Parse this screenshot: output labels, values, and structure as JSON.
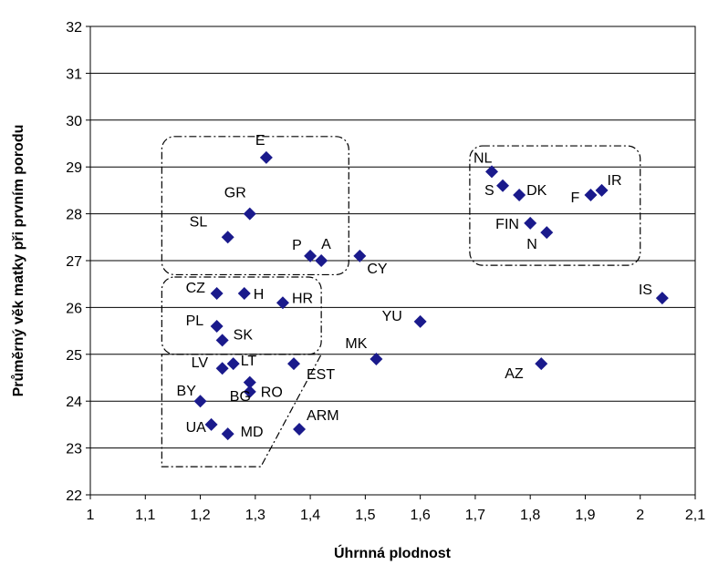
{
  "chart_data": {
    "type": "scatter",
    "title": "",
    "xlabel": "Úhrnná plodnost",
    "ylabel": "Průměrný věk matky při prvním porodu",
    "xlim": [
      1,
      2.1
    ],
    "ylim": [
      22,
      32
    ],
    "x_ticks": [
      "1",
      "1,1",
      "1,2",
      "1,3",
      "1,4",
      "1,5",
      "1,6",
      "1,7",
      "1,8",
      "1,9",
      "2",
      "2,1"
    ],
    "y_ticks": [
      "22",
      "23",
      "24",
      "25",
      "26",
      "27",
      "28",
      "29",
      "30",
      "31",
      "32"
    ],
    "grid": "horizontal",
    "marker_color": "#1a1a8c",
    "points": [
      {
        "label": "E",
        "x": 1.32,
        "y": 29.2
      },
      {
        "label": "GR",
        "x": 1.29,
        "y": 28.0
      },
      {
        "label": "SL",
        "x": 1.25,
        "y": 27.5
      },
      {
        "label": "P",
        "x": 1.4,
        "y": 27.1
      },
      {
        "label": "A",
        "x": 1.42,
        "y": 27.0
      },
      {
        "label": "CY",
        "x": 1.49,
        "y": 27.1
      },
      {
        "label": "CZ",
        "x": 1.23,
        "y": 26.3
      },
      {
        "label": "H",
        "x": 1.28,
        "y": 26.3
      },
      {
        "label": "HR",
        "x": 1.35,
        "y": 26.1
      },
      {
        "label": "PL",
        "x": 1.23,
        "y": 25.6
      },
      {
        "label": "SK",
        "x": 1.24,
        "y": 25.3
      },
      {
        "label": "LV",
        "x": 1.24,
        "y": 24.7
      },
      {
        "label": "LT",
        "x": 1.26,
        "y": 24.8
      },
      {
        "label": "EST",
        "x": 1.37,
        "y": 24.8
      },
      {
        "label": "RO",
        "x": 1.29,
        "y": 24.4
      },
      {
        "label": "BG",
        "x": 1.29,
        "y": 24.2
      },
      {
        "label": "BY",
        "x": 1.2,
        "y": 24.0
      },
      {
        "label": "UA",
        "x": 1.22,
        "y": 23.5
      },
      {
        "label": "MD",
        "x": 1.25,
        "y": 23.3
      },
      {
        "label": "ARM",
        "x": 1.38,
        "y": 23.4
      },
      {
        "label": "MK",
        "x": 1.52,
        "y": 24.9
      },
      {
        "label": "YU",
        "x": 1.6,
        "y": 25.7
      },
      {
        "label": "NL",
        "x": 1.73,
        "y": 28.9
      },
      {
        "label": "S",
        "x": 1.75,
        "y": 28.6
      },
      {
        "label": "DK",
        "x": 1.78,
        "y": 28.4
      },
      {
        "label": "F",
        "x": 1.91,
        "y": 28.4
      },
      {
        "label": "IR",
        "x": 1.93,
        "y": 28.5
      },
      {
        "label": "FIN",
        "x": 1.8,
        "y": 27.8
      },
      {
        "label": "N",
        "x": 1.83,
        "y": 27.6
      },
      {
        "label": "IS",
        "x": 2.04,
        "y": 26.2
      },
      {
        "label": "AZ",
        "x": 1.82,
        "y": 24.8
      }
    ],
    "group_outlines": [
      {
        "name": "group-1",
        "shape": "rounded-rect",
        "x": [
          1.13,
          1.47
        ],
        "y": [
          26.7,
          29.65
        ]
      },
      {
        "name": "group-2",
        "shape": "rounded-rect",
        "x": [
          1.13,
          1.42
        ],
        "y": [
          25.0,
          26.65
        ]
      },
      {
        "name": "group-3",
        "shape": "polygon",
        "points": [
          [
            1.13,
            25.0
          ],
          [
            1.42,
            25.0
          ],
          [
            1.31,
            22.6
          ],
          [
            1.13,
            22.6
          ]
        ]
      },
      {
        "name": "group-4",
        "shape": "rounded-rect",
        "x": [
          1.69,
          2.0
        ],
        "y": [
          26.9,
          29.45
        ]
      }
    ]
  }
}
